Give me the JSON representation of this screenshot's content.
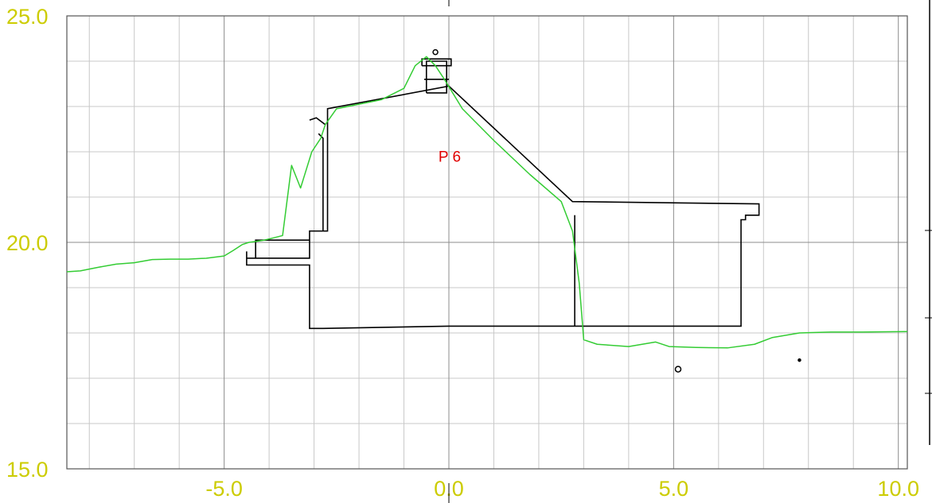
{
  "chart_data": {
    "type": "line",
    "title": "",
    "xlabel": "",
    "ylabel": "",
    "xlim": [
      -8.5,
      10.2
    ],
    "ylim": [
      15.0,
      25.0
    ],
    "grid": true,
    "minor_grid_step": 1.0,
    "major_grid_step": 5.0,
    "x_ticks": [
      {
        "value": -5.0,
        "label": "-5.0"
      },
      {
        "value": 0.0,
        "label": "0.0"
      },
      {
        "value": 5.0,
        "label": "5.0"
      },
      {
        "value": 10.0,
        "label": "10.0"
      }
    ],
    "y_ticks": [
      {
        "value": 15.0,
        "label": "15.0"
      },
      {
        "value": 20.0,
        "label": "20.0"
      },
      {
        "value": 25.0,
        "label": "25.0"
      }
    ],
    "annotations": [
      {
        "text": "P 6",
        "x": 0.0,
        "y": 21.9,
        "color": "#e00000"
      }
    ],
    "series": [
      {
        "color": "#33cc33",
        "x": [
          -8.5,
          -8.2,
          -7.8,
          -7.4,
          -7.0,
          -6.6,
          -6.2,
          -5.8,
          -5.4,
          -5.0,
          -4.8,
          -4.6,
          -4.45,
          -4.3,
          -4.1,
          -3.9,
          -3.7,
          -3.5,
          -3.3,
          -3.05,
          -2.85,
          -2.75,
          -2.5,
          -2.0,
          -1.5,
          -1.0,
          -0.75,
          -0.5,
          -0.3,
          -0.1,
          0.3,
          1.0,
          1.8,
          2.5,
          2.75,
          2.9,
          3.0,
          3.3,
          4.0,
          4.6,
          4.9,
          5.5,
          6.2,
          6.8,
          7.2,
          7.8,
          8.5,
          9.2,
          10.2
        ],
        "y": [
          19.35,
          19.37,
          19.45,
          19.52,
          19.55,
          19.62,
          19.63,
          19.63,
          19.65,
          19.7,
          19.82,
          19.95,
          20.0,
          20.02,
          20.05,
          20.1,
          20.15,
          21.7,
          21.2,
          22.0,
          22.3,
          22.6,
          22.95,
          23.05,
          23.15,
          23.4,
          23.9,
          24.1,
          23.9,
          23.6,
          22.95,
          22.25,
          21.5,
          20.9,
          20.25,
          19.1,
          17.85,
          17.75,
          17.7,
          17.8,
          17.7,
          17.68,
          17.67,
          17.75,
          17.9,
          18.0,
          18.02,
          18.02,
          18.03
        ]
      }
    ],
    "outline": [
      {
        "color": "#000000",
        "points": [
          [
            -4.5,
            19.8
          ],
          [
            -4.5,
            19.5
          ],
          [
            -3.1,
            19.5
          ],
          [
            -3.1,
            18.1
          ],
          [
            -2.8,
            18.1
          ],
          [
            0.0,
            18.15
          ],
          [
            6.5,
            18.15
          ],
          [
            6.5,
            20.5
          ],
          [
            6.6,
            20.5
          ],
          [
            6.6,
            20.6
          ],
          [
            6.9,
            20.6
          ],
          [
            6.9,
            20.85
          ],
          [
            2.75,
            20.9
          ],
          [
            0.0,
            23.45
          ],
          [
            -2.7,
            22.95
          ],
          [
            -2.7,
            20.25
          ],
          [
            -3.1,
            20.25
          ],
          [
            -3.1,
            19.65
          ],
          [
            -4.5,
            19.65
          ]
        ]
      },
      {
        "color": "#000000",
        "points": [
          [
            -4.3,
            19.65
          ],
          [
            -4.3,
            20.05
          ],
          [
            -3.1,
            20.05
          ]
        ]
      },
      {
        "color": "#000000",
        "points": [
          [
            -2.8,
            20.25
          ],
          [
            -2.8,
            22.3
          ],
          [
            -2.9,
            22.4
          ]
        ]
      },
      {
        "color": "#000000",
        "points": [
          [
            -3.1,
            22.7
          ],
          [
            -2.95,
            22.75
          ],
          [
            -2.75,
            22.6
          ]
        ]
      },
      {
        "color": "#000000",
        "points": [
          [
            2.8,
            18.15
          ],
          [
            2.8,
            20.6
          ]
        ]
      },
      {
        "color": "#000000",
        "points": [
          [
            -0.5,
            23.3
          ],
          [
            -0.5,
            24.0
          ],
          [
            -0.05,
            24.0
          ],
          [
            -0.05,
            23.3
          ],
          [
            -0.5,
            23.3
          ]
        ]
      },
      {
        "color": "#000000",
        "points": [
          [
            -0.6,
            23.9
          ],
          [
            0.05,
            23.9
          ],
          [
            0.05,
            24.05
          ],
          [
            -0.6,
            24.05
          ],
          [
            -0.6,
            23.9
          ]
        ]
      },
      {
        "color": "#000000",
        "points": [
          [
            -0.55,
            23.6
          ],
          [
            0.0,
            23.6
          ]
        ]
      }
    ],
    "markers": [
      {
        "x": -0.3,
        "y": 24.2,
        "r": 3,
        "shape": "ring"
      },
      {
        "x": 5.1,
        "y": 17.2,
        "r": 3.5,
        "shape": "ring"
      },
      {
        "x": 7.8,
        "y": 17.4,
        "r": 1.5,
        "shape": "dot"
      }
    ]
  }
}
